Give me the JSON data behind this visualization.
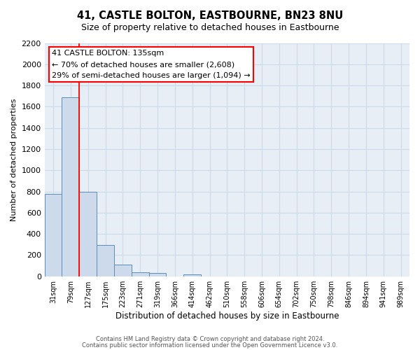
{
  "title": "41, CASTLE BOLTON, EASTBOURNE, BN23 8NU",
  "subtitle": "Size of property relative to detached houses in Eastbourne",
  "xlabel": "Distribution of detached houses by size in Eastbourne",
  "ylabel": "Number of detached properties",
  "footer_line1": "Contains HM Land Registry data © Crown copyright and database right 2024.",
  "footer_line2": "Contains public sector information licensed under the Open Government Licence v3.0.",
  "bin_labels": [
    "31sqm",
    "79sqm",
    "127sqm",
    "175sqm",
    "223sqm",
    "271sqm",
    "319sqm",
    "366sqm",
    "414sqm",
    "462sqm",
    "510sqm",
    "558sqm",
    "606sqm",
    "654sqm",
    "702sqm",
    "750sqm",
    "798sqm",
    "846sqm",
    "894sqm",
    "941sqm",
    "989sqm"
  ],
  "bar_values": [
    780,
    1690,
    800,
    295,
    110,
    35,
    30,
    0,
    20,
    0,
    0,
    0,
    0,
    0,
    0,
    0,
    0,
    0,
    0,
    0,
    0
  ],
  "bar_color": "#ccdaeb",
  "bar_edge_color": "#5b8db8",
  "red_line_bin_index": 2,
  "ylim": [
    0,
    2200
  ],
  "yticks": [
    0,
    200,
    400,
    600,
    800,
    1000,
    1200,
    1400,
    1600,
    1800,
    2000,
    2200
  ],
  "annotation_title": "41 CASTLE BOLTON: 135sqm",
  "annotation_line1": "← 70% of detached houses are smaller (2,608)",
  "annotation_line2": "29% of semi-detached houses are larger (1,094) →",
  "grid_color": "#ccdaeb",
  "bg_color": "#e8eef5"
}
